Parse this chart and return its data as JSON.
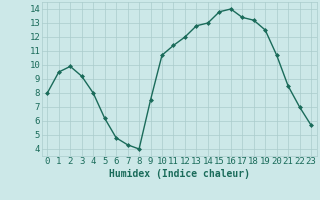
{
  "x": [
    0,
    1,
    2,
    3,
    4,
    5,
    6,
    7,
    8,
    9,
    10,
    11,
    12,
    13,
    14,
    15,
    16,
    17,
    18,
    19,
    20,
    21,
    22,
    23
  ],
  "y": [
    8,
    9.5,
    9.9,
    9.2,
    8,
    6.2,
    4.8,
    4.3,
    4.0,
    7.5,
    10.7,
    11.4,
    12.0,
    12.8,
    13.0,
    13.8,
    14.0,
    13.4,
    13.2,
    12.5,
    10.7,
    8.5,
    7.0,
    5.7
  ],
  "xlabel": "Humidex (Indice chaleur)",
  "ylim": [
    3.5,
    14.5
  ],
  "xlim": [
    -0.5,
    23.5
  ],
  "yticks": [
    4,
    5,
    6,
    7,
    8,
    9,
    10,
    11,
    12,
    13,
    14
  ],
  "xticks": [
    0,
    1,
    2,
    3,
    4,
    5,
    6,
    7,
    8,
    9,
    10,
    11,
    12,
    13,
    14,
    15,
    16,
    17,
    18,
    19,
    20,
    21,
    22,
    23
  ],
  "line_color": "#1a6b5a",
  "marker_color": "#1a6b5a",
  "bg_color": "#cce8e8",
  "grid_color": "#aacccc",
  "text_color": "#1a6b5a",
  "xlabel_fontsize": 7,
  "tick_fontsize": 6.5
}
